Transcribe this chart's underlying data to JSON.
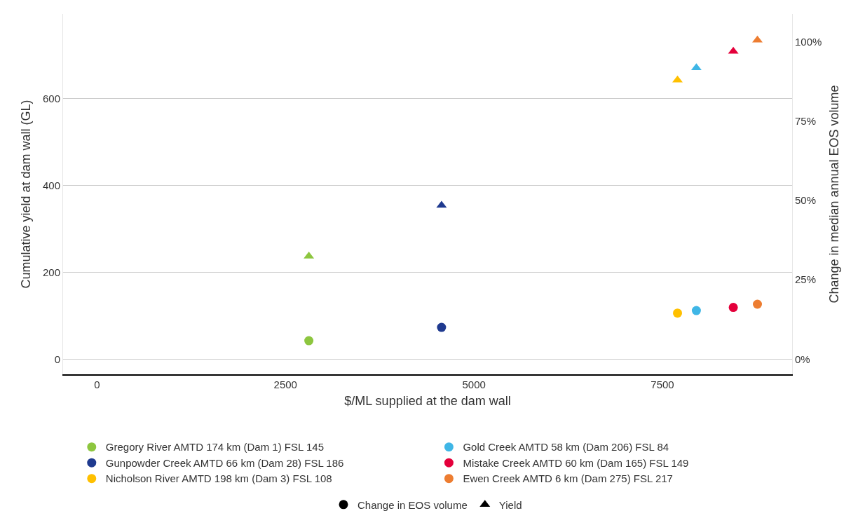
{
  "chart_data": {
    "type": "scatter",
    "xlabel": "$/ML supplied at the dam wall",
    "ylabel": "Cumulative yield at dam wall (GL)",
    "y2label": "Change in median annual EOS volume",
    "xlim": [
      -450,
      9220
    ],
    "xticks": [
      0,
      2500,
      5000,
      7500
    ],
    "ylim": [
      -35,
      795
    ],
    "yticks": [
      0,
      200,
      400,
      600
    ],
    "y2lim": [
      -4.8,
      108.8
    ],
    "y2ticks": [
      {
        "value": 0,
        "label": "0%"
      },
      {
        "value": 25,
        "label": "25%"
      },
      {
        "value": 50,
        "label": "50%"
      },
      {
        "value": 75,
        "label": "75%"
      },
      {
        "value": 100,
        "label": "100%"
      }
    ],
    "grid": "y",
    "legend": "bottom",
    "series": [
      {
        "name": "Gregory River AMTD 174 km (Dam 1) FSL 145",
        "color": "#8dc63f",
        "marker": "circle",
        "axis": "y2",
        "x": [
          2810
        ],
        "values": [
          5.8
        ]
      },
      {
        "name": "Gunpowder Creek AMTD 66 km (Dam 28) FSL 186",
        "color": "#1f3a8f",
        "marker": "circle",
        "axis": "y2",
        "x": [
          4570
        ],
        "values": [
          10
        ]
      },
      {
        "name": "Nicholson River AMTD 198 km (Dam 3) FSL 108",
        "color": "#ffc000",
        "marker": "circle",
        "axis": "y2",
        "x": [
          7700
        ],
        "values": [
          14.5
        ]
      },
      {
        "name": "Gold Creek AMTD 58 km (Dam 206) FSL 84",
        "color": "#3fb6e6",
        "marker": "circle",
        "axis": "y2",
        "x": [
          7950
        ],
        "values": [
          15.3
        ]
      },
      {
        "name": "Mistake Creek AMTD 60 km (Dam 165) FSL 149",
        "color": "#e4003b",
        "marker": "circle",
        "axis": "y2",
        "x": [
          8440
        ],
        "values": [
          16.3
        ]
      },
      {
        "name": "Ewen Creek AMTD 6 km (Dam 275) FSL 217",
        "color": "#ed7d31",
        "marker": "circle",
        "axis": "y2",
        "x": [
          8760
        ],
        "values": [
          17.3
        ]
      },
      {
        "color": "#8dc63f",
        "marker": "triangle",
        "x": [
          2810
        ],
        "values": [
          237
        ]
      },
      {
        "color": "#1f3a8f",
        "marker": "triangle",
        "x": [
          4570
        ],
        "values": [
          354
        ]
      },
      {
        "color": "#ffc000",
        "marker": "triangle",
        "x": [
          7700
        ],
        "values": [
          643
        ]
      },
      {
        "color": "#3fb6e6",
        "marker": "triangle",
        "x": [
          7950
        ],
        "values": [
          671
        ]
      },
      {
        "color": "#e4003b",
        "marker": "triangle",
        "x": [
          8440
        ],
        "values": [
          709
        ]
      },
      {
        "color": "#ed7d31",
        "marker": "triangle",
        "x": [
          8760
        ],
        "values": [
          735
        ]
      },
      {
        "name": "Change in EOS volume",
        "color": "#000000",
        "marker": "circle"
      },
      {
        "name": "Yield",
        "color": "#000000",
        "marker": "triangle"
      }
    ]
  }
}
